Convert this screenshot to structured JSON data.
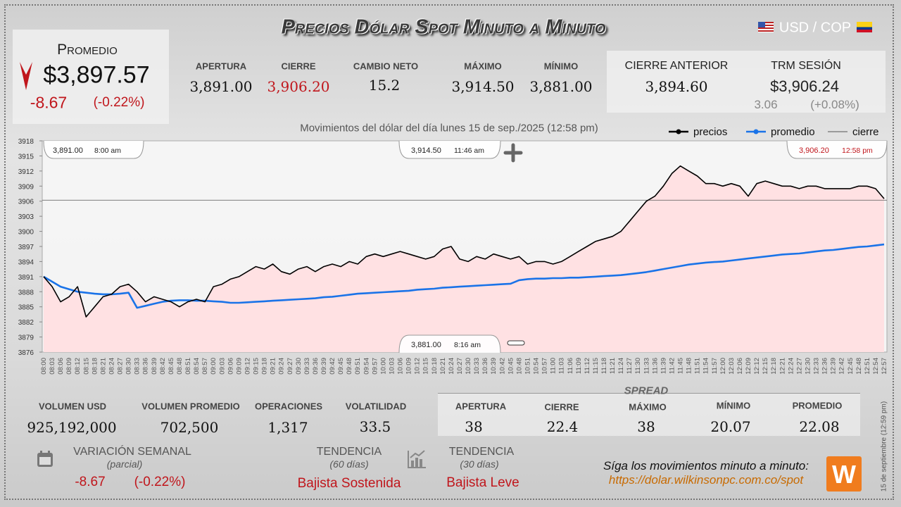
{
  "header": {
    "title": "Precios Dólar Spot Minuto a Minuto",
    "pair": "USD / COP"
  },
  "promedio": {
    "label": "Promedio",
    "value": "$3,897.57",
    "change": "-8.67",
    "change_pct": "(-0.22%)"
  },
  "stats": [
    {
      "label": "APERTURA",
      "value": "3,891.00"
    },
    {
      "label": "CIERRE",
      "value": "3,906.20"
    },
    {
      "label": "CAMBIO NETO",
      "value": "15.2"
    },
    {
      "label": "MÁXIMO",
      "value": "3,914.50"
    },
    {
      "label": "MÍNIMO",
      "value": "3,881.00"
    },
    {
      "label": "CIERRE ANTERIOR",
      "value": "3,894.60"
    },
    {
      "label": "TRM SESIÓN",
      "value": "$3,906.24",
      "change": "3.06",
      "change_pct": "(+0.08%)"
    }
  ],
  "chart_data": {
    "type": "line",
    "subtitle": "Movimientos del dólar del día lunes 15 de sep./2025 (12:58 pm)",
    "categories": [
      "08:00",
      "08:03",
      "08:06",
      "08:09",
      "08:12",
      "08:15",
      "08:18",
      "08:21",
      "08:24",
      "08:27",
      "08:30",
      "08:33",
      "08:36",
      "08:39",
      "08:42",
      "08:45",
      "08:48",
      "08:51",
      "08:54",
      "08:57",
      "09:00",
      "09:03",
      "09:06",
      "09:09",
      "09:12",
      "09:15",
      "09:18",
      "09:21",
      "09:24",
      "09:27",
      "09:30",
      "09:33",
      "09:36",
      "09:39",
      "09:42",
      "09:45",
      "09:48",
      "09:51",
      "09:54",
      "09:57",
      "10:00",
      "10:03",
      "10:06",
      "10:09",
      "10:12",
      "10:15",
      "10:18",
      "10:21",
      "10:24",
      "10:27",
      "10:30",
      "10:33",
      "10:36",
      "10:39",
      "10:42",
      "10:45",
      "10:48",
      "10:51",
      "10:54",
      "10:57",
      "11:00",
      "11:03",
      "11:06",
      "11:09",
      "11:12",
      "11:15",
      "11:18",
      "11:21",
      "11:24",
      "11:27",
      "11:30",
      "11:33",
      "11:36",
      "11:39",
      "11:42",
      "11:45",
      "11:48",
      "11:51",
      "11:54",
      "11:57",
      "12:00",
      "12:03",
      "12:06",
      "12:09",
      "12:12",
      "12:15",
      "12:18",
      "12:21",
      "12:24",
      "12:27",
      "12:30",
      "12:33",
      "12:36",
      "12:39",
      "12:42",
      "12:45",
      "12:48",
      "12:51",
      "12:54",
      "12:57"
    ],
    "series": [
      {
        "name": "precios",
        "color": "#000000",
        "values": [
          3891,
          3889,
          3886,
          3887,
          3889,
          3883,
          3885,
          3887,
          3887.5,
          3889,
          3889.5,
          3888,
          3886,
          3887,
          3886.5,
          3886,
          3885,
          3886,
          3886.5,
          3886,
          3889,
          3889.5,
          3890.5,
          3891,
          3892,
          3893,
          3892.5,
          3893.5,
          3892,
          3891.5,
          3892.5,
          3893,
          3892,
          3893,
          3893.5,
          3893,
          3894,
          3893.5,
          3895,
          3895.5,
          3895,
          3895.5,
          3896,
          3895.5,
          3895,
          3894.5,
          3895,
          3896.5,
          3897,
          3894.5,
          3894,
          3895,
          3894.5,
          3895.5,
          3895,
          3894.5,
          3895,
          3893.5,
          3894,
          3894,
          3893.5,
          3894,
          3895,
          3896,
          3897,
          3898,
          3898.5,
          3899,
          3900,
          3902,
          3904,
          3906,
          3907,
          3909,
          3911.5,
          3913,
          3912,
          3911,
          3909.5,
          3909.5,
          3909,
          3909.5,
          3909,
          3907,
          3909.5,
          3910,
          3909.5,
          3909,
          3909,
          3908.5,
          3909,
          3909,
          3908.5,
          3908.5,
          3908.5,
          3908.5,
          3909,
          3909,
          3908.5,
          3906.5
        ]
      },
      {
        "name": "promedio",
        "color": "#1a73e8",
        "values": [
          3891,
          3890,
          3889,
          3888.5,
          3888,
          3887.8,
          3887.6,
          3887.5,
          3887.5,
          3887.6,
          3887.8,
          3884.8,
          3885.2,
          3885.6,
          3886,
          3886.2,
          3886.3,
          3886.3,
          3886.2,
          3886.2,
          3886.1,
          3886,
          3885.8,
          3885.8,
          3885.9,
          3886,
          3886.1,
          3886.2,
          3886.3,
          3886.4,
          3886.5,
          3886.6,
          3886.7,
          3886.9,
          3887,
          3887.2,
          3887.4,
          3887.6,
          3887.7,
          3887.8,
          3887.9,
          3888,
          3888.1,
          3888.2,
          3888.4,
          3888.5,
          3888.6,
          3888.8,
          3888.9,
          3889,
          3889.1,
          3889.2,
          3889.3,
          3889.4,
          3889.5,
          3889.6,
          3890.3,
          3890.5,
          3890.6,
          3890.6,
          3890.7,
          3890.7,
          3890.8,
          3890.8,
          3890.9,
          3891,
          3891.1,
          3891.2,
          3891.3,
          3891.5,
          3891.7,
          3891.9,
          3892.2,
          3892.5,
          3892.8,
          3893.1,
          3893.4,
          3893.6,
          3893.8,
          3893.9,
          3894,
          3894.2,
          3894.4,
          3894.6,
          3894.8,
          3895,
          3895.2,
          3895.4,
          3895.5,
          3895.6,
          3895.8,
          3896,
          3896.2,
          3896.3,
          3896.5,
          3896.7,
          3896.9,
          3897,
          3897.2,
          3897.4
        ]
      }
    ],
    "reference": {
      "name": "cierre",
      "color": "#555555",
      "value": 3906.2
    },
    "area_color": "#ffe1e3",
    "ylim": [
      3876,
      3918
    ],
    "yticks": [
      3876,
      3879,
      3882,
      3885,
      3888,
      3891,
      3894,
      3897,
      3900,
      3903,
      3906,
      3909,
      3912,
      3915,
      3918
    ],
    "grid": false,
    "annotations": [
      {
        "label": "3,891.00",
        "time": "8:00 am"
      },
      {
        "label": "3,914.50",
        "time": "11:46 am"
      },
      {
        "label": "3,906.20",
        "time": "12:58 pm"
      },
      {
        "label": "3,881.00",
        "time": "8:16 am"
      }
    ]
  },
  "volume": [
    {
      "label": "VOLUMEN USD",
      "value": "925,192,000"
    },
    {
      "label": "VOLUMEN PROMEDIO",
      "value": "702,500"
    },
    {
      "label": "OPERACIONES",
      "value": "1,317"
    },
    {
      "label": "VOLATILIDAD",
      "value": "33.5"
    }
  ],
  "spread": {
    "title": "SPREAD",
    "items": [
      {
        "label": "APERTURA",
        "value": "38"
      },
      {
        "label": "CIERRE",
        "value": "22.4"
      },
      {
        "label": "MÁXIMO",
        "value": "38"
      },
      {
        "label": "MÍNIMO",
        "value": "20.07"
      },
      {
        "label": "PROMEDIO",
        "value": "22.08"
      }
    ]
  },
  "weekly": {
    "label": "VARIACIÓN SEMANAL",
    "note": "(parcial)",
    "change": "-8.67",
    "change_pct": "(-0.22%)"
  },
  "trend60": {
    "label": "TENDENCIA",
    "note": "(60 días)",
    "value": "Bajista Sostenida"
  },
  "trend30": {
    "label": "TENDENCIA",
    "note": "(30 días)",
    "value": "Bajista Leve"
  },
  "footer": {
    "text": "Síga los movimientos minuto a minuto:",
    "url": "https://dolar.wilkinsonpc.com.co/spot",
    "logo": "W",
    "side_note": "15 de septiembre (12:59 pm)"
  }
}
